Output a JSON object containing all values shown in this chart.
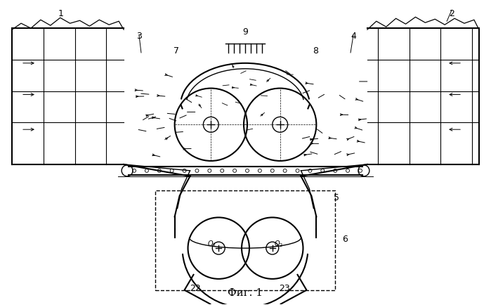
{
  "title": "Фиг. 1",
  "bg_color": "#ffffff",
  "line_color": "#000000",
  "fig_width": 6.99,
  "fig_height": 4.35,
  "dpi": 100
}
